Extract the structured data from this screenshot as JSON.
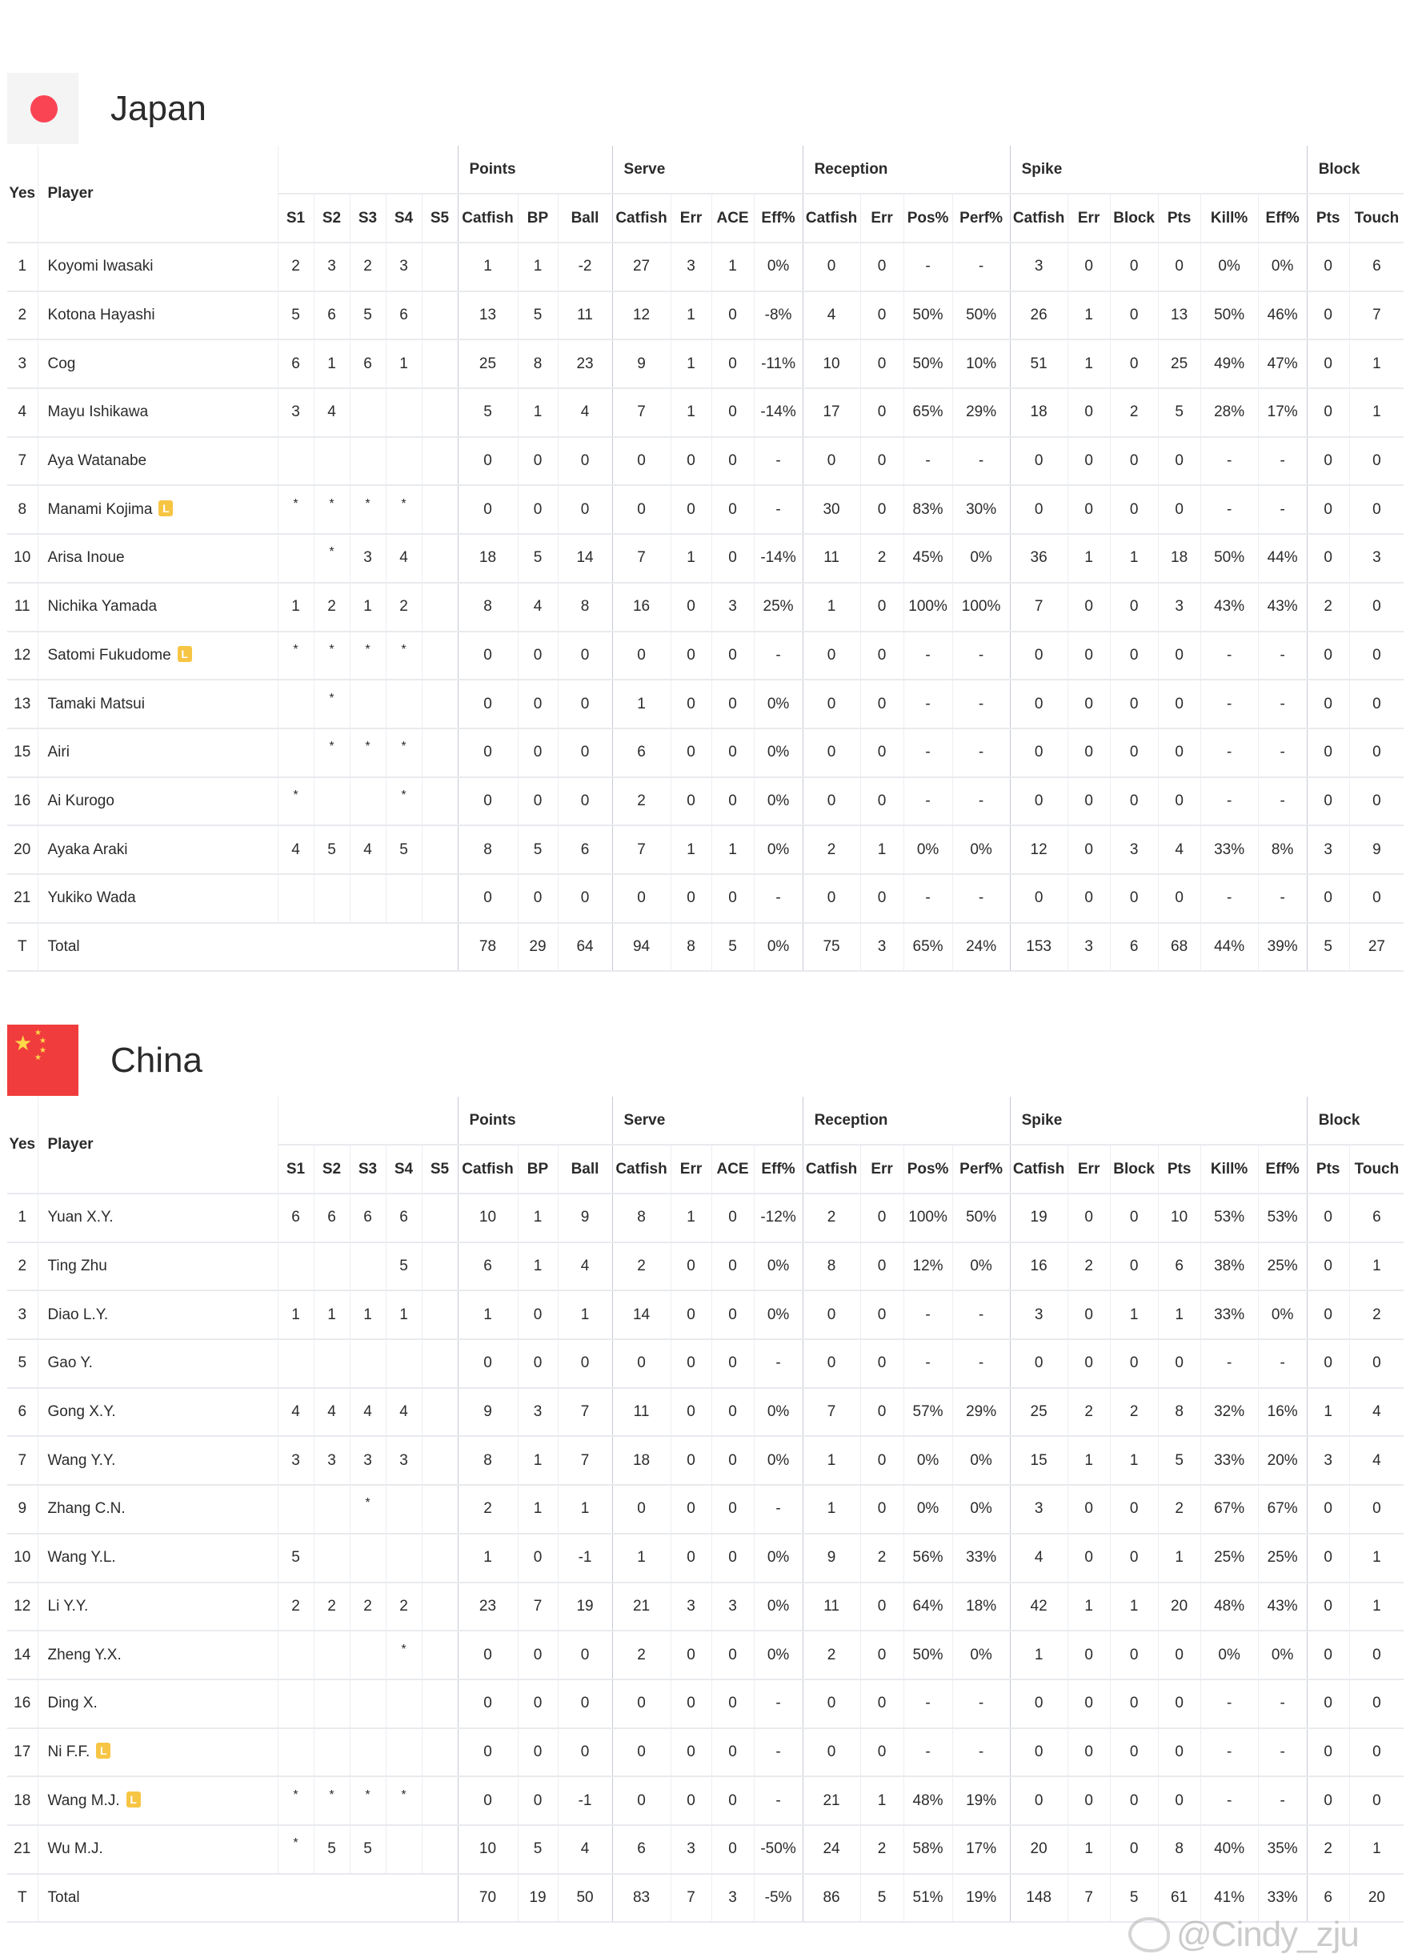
{
  "columns": {
    "yes": "Yes",
    "player": "Player",
    "groups": [
      "Points",
      "Serve",
      "Reception",
      "Spike",
      "Block"
    ],
    "sets": [
      "S1",
      "S2",
      "S3",
      "S4",
      "S5"
    ],
    "stats": [
      "Catfish",
      "BP",
      "Ball",
      "Catfish",
      "Err",
      "ACE",
      "Eff%",
      "Catfish",
      "Err",
      "Pos%",
      "Perf%",
      "Catfish",
      "Err",
      "Block",
      "Pts",
      "Kill%",
      "Eff%",
      "Pts",
      "Touch"
    ]
  },
  "libero_badge": "L",
  "teams": [
    {
      "name": "Japan",
      "flag_icon": "japan-flag",
      "rows": [
        {
          "no": "1",
          "player": "Koyomi Iwasaki",
          "libero": false,
          "sets": [
            "2",
            "3",
            "2",
            "3",
            ""
          ],
          "stats": [
            "1",
            "1",
            "-2",
            "27",
            "3",
            "1",
            "0%",
            "0",
            "0",
            "-",
            "-",
            "3",
            "0",
            "0",
            "0",
            "0%",
            "0%",
            "0",
            "6"
          ]
        },
        {
          "no": "2",
          "player": "Kotona Hayashi",
          "libero": false,
          "sets": [
            "5",
            "6",
            "5",
            "6",
            ""
          ],
          "stats": [
            "13",
            "5",
            "11",
            "12",
            "1",
            "0",
            "-8%",
            "4",
            "0",
            "50%",
            "50%",
            "26",
            "1",
            "0",
            "13",
            "50%",
            "46%",
            "0",
            "7"
          ]
        },
        {
          "no": "3",
          "player": "Cog",
          "libero": false,
          "sets": [
            "6",
            "1",
            "6",
            "1",
            ""
          ],
          "stats": [
            "25",
            "8",
            "23",
            "9",
            "1",
            "0",
            "-11%",
            "10",
            "0",
            "50%",
            "10%",
            "51",
            "1",
            "0",
            "25",
            "49%",
            "47%",
            "0",
            "1"
          ]
        },
        {
          "no": "4",
          "player": "Mayu Ishikawa",
          "libero": false,
          "sets": [
            "3",
            "4",
            "",
            "",
            ""
          ],
          "stats": [
            "5",
            "1",
            "4",
            "7",
            "1",
            "0",
            "-14%",
            "17",
            "0",
            "65%",
            "29%",
            "18",
            "0",
            "2",
            "5",
            "28%",
            "17%",
            "0",
            "1"
          ]
        },
        {
          "no": "7",
          "player": "Aya Watanabe",
          "libero": false,
          "sets": [
            "",
            "",
            "",
            "",
            ""
          ],
          "stats": [
            "0",
            "0",
            "0",
            "0",
            "0",
            "0",
            "-",
            "0",
            "0",
            "-",
            "-",
            "0",
            "0",
            "0",
            "0",
            "-",
            "-",
            "0",
            "0"
          ]
        },
        {
          "no": "8",
          "player": "Manami Kojima",
          "libero": true,
          "sets": [
            "*",
            "*",
            "*",
            "*",
            ""
          ],
          "stats": [
            "0",
            "0",
            "0",
            "0",
            "0",
            "0",
            "-",
            "30",
            "0",
            "83%",
            "30%",
            "0",
            "0",
            "0",
            "0",
            "-",
            "-",
            "0",
            "0"
          ]
        },
        {
          "no": "10",
          "player": "Arisa Inoue",
          "libero": false,
          "sets": [
            "",
            "*",
            "3",
            "4",
            ""
          ],
          "stats": [
            "18",
            "5",
            "14",
            "7",
            "1",
            "0",
            "-14%",
            "11",
            "2",
            "45%",
            "0%",
            "36",
            "1",
            "1",
            "18",
            "50%",
            "44%",
            "0",
            "3"
          ]
        },
        {
          "no": "11",
          "player": "Nichika Yamada",
          "libero": false,
          "sets": [
            "1",
            "2",
            "1",
            "2",
            ""
          ],
          "stats": [
            "8",
            "4",
            "8",
            "16",
            "0",
            "3",
            "25%",
            "1",
            "0",
            "100%",
            "100%",
            "7",
            "0",
            "0",
            "3",
            "43%",
            "43%",
            "2",
            "0"
          ]
        },
        {
          "no": "12",
          "player": "Satomi Fukudome",
          "libero": true,
          "sets": [
            "*",
            "*",
            "*",
            "*",
            ""
          ],
          "stats": [
            "0",
            "0",
            "0",
            "0",
            "0",
            "0",
            "-",
            "0",
            "0",
            "-",
            "-",
            "0",
            "0",
            "0",
            "0",
            "-",
            "-",
            "0",
            "0"
          ]
        },
        {
          "no": "13",
          "player": "Tamaki Matsui",
          "libero": false,
          "sets": [
            "",
            "*",
            "",
            "",
            ""
          ],
          "stats": [
            "0",
            "0",
            "0",
            "1",
            "0",
            "0",
            "0%",
            "0",
            "0",
            "-",
            "-",
            "0",
            "0",
            "0",
            "0",
            "-",
            "-",
            "0",
            "0"
          ]
        },
        {
          "no": "15",
          "player": "Airi",
          "libero": false,
          "sets": [
            "",
            "*",
            "*",
            "*",
            ""
          ],
          "stats": [
            "0",
            "0",
            "0",
            "6",
            "0",
            "0",
            "0%",
            "0",
            "0",
            "-",
            "-",
            "0",
            "0",
            "0",
            "0",
            "-",
            "-",
            "0",
            "0"
          ]
        },
        {
          "no": "16",
          "player": "Ai Kurogo",
          "libero": false,
          "sets": [
            "*",
            "",
            "",
            "*",
            ""
          ],
          "stats": [
            "0",
            "0",
            "0",
            "2",
            "0",
            "0",
            "0%",
            "0",
            "0",
            "-",
            "-",
            "0",
            "0",
            "0",
            "0",
            "-",
            "-",
            "0",
            "0"
          ]
        },
        {
          "no": "20",
          "player": "Ayaka Araki",
          "libero": false,
          "sets": [
            "4",
            "5",
            "4",
            "5",
            ""
          ],
          "stats": [
            "8",
            "5",
            "6",
            "7",
            "1",
            "1",
            "0%",
            "2",
            "1",
            "0%",
            "0%",
            "12",
            "0",
            "3",
            "4",
            "33%",
            "8%",
            "3",
            "9"
          ]
        },
        {
          "no": "21",
          "player": "Yukiko Wada",
          "libero": false,
          "sets": [
            "",
            "",
            "",
            "",
            ""
          ],
          "stats": [
            "0",
            "0",
            "0",
            "0",
            "0",
            "0",
            "-",
            "0",
            "0",
            "-",
            "-",
            "0",
            "0",
            "0",
            "0",
            "-",
            "-",
            "0",
            "0"
          ]
        },
        {
          "no": "T",
          "player": "Total",
          "libero": false,
          "sets": [
            "",
            "",
            "",
            "",
            ""
          ],
          "stats": [
            "78",
            "29",
            "64",
            "94",
            "8",
            "5",
            "0%",
            "75",
            "3",
            "65%",
            "24%",
            "153",
            "3",
            "6",
            "68",
            "44%",
            "39%",
            "5",
            "27"
          ]
        }
      ]
    },
    {
      "name": "China",
      "flag_icon": "china-flag",
      "rows": [
        {
          "no": "1",
          "player": "Yuan X.Y.",
          "libero": false,
          "sets": [
            "6",
            "6",
            "6",
            "6",
            ""
          ],
          "stats": [
            "10",
            "1",
            "9",
            "8",
            "1",
            "0",
            "-12%",
            "2",
            "0",
            "100%",
            "50%",
            "19",
            "0",
            "0",
            "10",
            "53%",
            "53%",
            "0",
            "6"
          ]
        },
        {
          "no": "2",
          "player": "Ting Zhu",
          "libero": false,
          "sets": [
            "",
            "",
            "",
            "5",
            ""
          ],
          "stats": [
            "6",
            "1",
            "4",
            "2",
            "0",
            "0",
            "0%",
            "8",
            "0",
            "12%",
            "0%",
            "16",
            "2",
            "0",
            "6",
            "38%",
            "25%",
            "0",
            "1"
          ]
        },
        {
          "no": "3",
          "player": "Diao L.Y.",
          "libero": false,
          "sets": [
            "1",
            "1",
            "1",
            "1",
            ""
          ],
          "stats": [
            "1",
            "0",
            "1",
            "14",
            "0",
            "0",
            "0%",
            "0",
            "0",
            "-",
            "-",
            "3",
            "0",
            "1",
            "1",
            "33%",
            "0%",
            "0",
            "2"
          ]
        },
        {
          "no": "5",
          "player": "Gao Y.",
          "libero": false,
          "sets": [
            "",
            "",
            "",
            "",
            ""
          ],
          "stats": [
            "0",
            "0",
            "0",
            "0",
            "0",
            "0",
            "-",
            "0",
            "0",
            "-",
            "-",
            "0",
            "0",
            "0",
            "0",
            "-",
            "-",
            "0",
            "0"
          ]
        },
        {
          "no": "6",
          "player": "Gong X.Y.",
          "libero": false,
          "sets": [
            "4",
            "4",
            "4",
            "4",
            ""
          ],
          "stats": [
            "9",
            "3",
            "7",
            "11",
            "0",
            "0",
            "0%",
            "7",
            "0",
            "57%",
            "29%",
            "25",
            "2",
            "2",
            "8",
            "32%",
            "16%",
            "1",
            "4"
          ]
        },
        {
          "no": "7",
          "player": "Wang Y.Y.",
          "libero": false,
          "sets": [
            "3",
            "3",
            "3",
            "3",
            ""
          ],
          "stats": [
            "8",
            "1",
            "7",
            "18",
            "0",
            "0",
            "0%",
            "1",
            "0",
            "0%",
            "0%",
            "15",
            "1",
            "1",
            "5",
            "33%",
            "20%",
            "3",
            "4"
          ]
        },
        {
          "no": "9",
          "player": "Zhang C.N.",
          "libero": false,
          "sets": [
            "",
            "",
            "*",
            "",
            ""
          ],
          "stats": [
            "2",
            "1",
            "1",
            "0",
            "0",
            "0",
            "-",
            "1",
            "0",
            "0%",
            "0%",
            "3",
            "0",
            "0",
            "2",
            "67%",
            "67%",
            "0",
            "0"
          ]
        },
        {
          "no": "10",
          "player": "Wang Y.L.",
          "libero": false,
          "sets": [
            "5",
            "",
            "",
            "",
            ""
          ],
          "stats": [
            "1",
            "0",
            "-1",
            "1",
            "0",
            "0",
            "0%",
            "9",
            "2",
            "56%",
            "33%",
            "4",
            "0",
            "0",
            "1",
            "25%",
            "25%",
            "0",
            "1"
          ]
        },
        {
          "no": "12",
          "player": "Li Y.Y.",
          "libero": false,
          "sets": [
            "2",
            "2",
            "2",
            "2",
            ""
          ],
          "stats": [
            "23",
            "7",
            "19",
            "21",
            "3",
            "3",
            "0%",
            "11",
            "0",
            "64%",
            "18%",
            "42",
            "1",
            "1",
            "20",
            "48%",
            "43%",
            "0",
            "1"
          ]
        },
        {
          "no": "14",
          "player": "Zheng Y.X.",
          "libero": false,
          "sets": [
            "",
            "",
            "",
            "*",
            ""
          ],
          "stats": [
            "0",
            "0",
            "0",
            "2",
            "0",
            "0",
            "0%",
            "2",
            "0",
            "50%",
            "0%",
            "1",
            "0",
            "0",
            "0",
            "0%",
            "0%",
            "0",
            "0"
          ]
        },
        {
          "no": "16",
          "player": "Ding X.",
          "libero": false,
          "sets": [
            "",
            "",
            "",
            "",
            ""
          ],
          "stats": [
            "0",
            "0",
            "0",
            "0",
            "0",
            "0",
            "-",
            "0",
            "0",
            "-",
            "-",
            "0",
            "0",
            "0",
            "0",
            "-",
            "-",
            "0",
            "0"
          ]
        },
        {
          "no": "17",
          "player": "Ni F.F.",
          "libero": true,
          "sets": [
            "",
            "",
            "",
            "",
            ""
          ],
          "stats": [
            "0",
            "0",
            "0",
            "0",
            "0",
            "0",
            "-",
            "0",
            "0",
            "-",
            "-",
            "0",
            "0",
            "0",
            "0",
            "-",
            "-",
            "0",
            "0"
          ]
        },
        {
          "no": "18",
          "player": "Wang M.J.",
          "libero": true,
          "sets": [
            "*",
            "*",
            "*",
            "*",
            ""
          ],
          "stats": [
            "0",
            "0",
            "-1",
            "0",
            "0",
            "0",
            "-",
            "21",
            "1",
            "48%",
            "19%",
            "0",
            "0",
            "0",
            "0",
            "-",
            "-",
            "0",
            "0"
          ]
        },
        {
          "no": "21",
          "player": "Wu M.J.",
          "libero": false,
          "sets": [
            "*",
            "5",
            "5",
            "",
            ""
          ],
          "stats": [
            "10",
            "5",
            "4",
            "6",
            "3",
            "0",
            "-50%",
            "24",
            "2",
            "58%",
            "17%",
            "20",
            "1",
            "0",
            "8",
            "40%",
            "35%",
            "2",
            "1"
          ]
        },
        {
          "no": "T",
          "player": "Total",
          "libero": false,
          "sets": [
            "",
            "",
            "",
            "",
            ""
          ],
          "stats": [
            "70",
            "19",
            "50",
            "83",
            "7",
            "3",
            "-5%",
            "86",
            "5",
            "51%",
            "19%",
            "148",
            "7",
            "5",
            "61",
            "41%",
            "33%",
            "6",
            "20"
          ]
        }
      ]
    }
  ],
  "watermark": "@Cindy_zju"
}
